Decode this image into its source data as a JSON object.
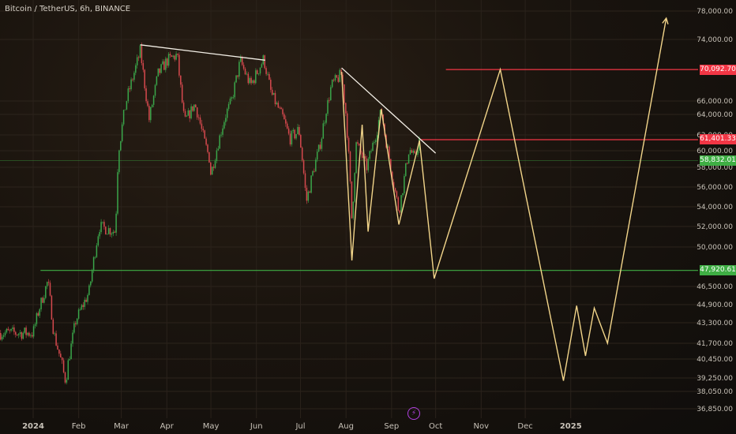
{
  "header": {
    "title": "Bitcoin / TetherUS, 6h, BINANCE"
  },
  "chart_data": {
    "type": "candlestick",
    "symbol": "Bitcoin / TetherUS",
    "interval": "6h",
    "exchange": "BINANCE",
    "y_axis_ticks": [
      "78,000.00",
      "74,000.00",
      "66,000.00",
      "64,000.00",
      "62,000.00",
      "60,000.00",
      "58,000.00",
      "56,000.00",
      "54,000.00",
      "52,000.00",
      "50,000.00",
      "46,500.00",
      "44,900.00",
      "43,300.00",
      "41,700.00",
      "40,450.00",
      "39,250.00",
      "38,050.00",
      "36,850.00"
    ],
    "x_axis_labels": [
      "2024",
      "Feb",
      "Mar",
      "Apr",
      "May",
      "Jun",
      "Jul",
      "Aug",
      "Sep",
      "Oct",
      "Nov",
      "Dec",
      "2025"
    ],
    "ylim": [
      36250,
      78800
    ],
    "scale": "log-like",
    "grid": true,
    "price_levels": [
      {
        "label": "70,092.70",
        "value": 70092.7,
        "color": "#f23645"
      },
      {
        "label": "61,401.33",
        "value": 61401.33,
        "color": "#f23645"
      },
      {
        "label": "58,832.01",
        "value": 58832.01,
        "color": "#3fae44"
      },
      {
        "label": "47,920.61",
        "value": 47920.61,
        "color": "#3fae44"
      }
    ],
    "price_series_approx": [
      [
        "2024-01-01",
        42500
      ],
      [
        "2024-01-05",
        44500
      ],
      [
        "2024-01-11",
        47000
      ],
      [
        "2024-01-15",
        42500
      ],
      [
        "2024-01-23",
        39000
      ],
      [
        "2024-01-30",
        43500
      ],
      [
        "2024-02-08",
        46000
      ],
      [
        "2024-02-12",
        49500
      ],
      [
        "2024-02-15",
        52000
      ],
      [
        "2024-02-26",
        51500
      ],
      [
        "2024-02-28",
        60000
      ],
      [
        "2024-03-05",
        66500
      ],
      [
        "2024-03-08",
        68500
      ],
      [
        "2024-03-14",
        72500
      ],
      [
        "2024-03-20",
        63500
      ],
      [
        "2024-03-26",
        69500
      ],
      [
        "2024-04-01",
        71200
      ],
      [
        "2024-04-08",
        72000
      ],
      [
        "2024-04-13",
        63000
      ],
      [
        "2024-04-20",
        65500
      ],
      [
        "2024-04-30",
        59000
      ],
      [
        "2024-05-01",
        57200
      ],
      [
        "2024-05-08",
        62500
      ],
      [
        "2024-05-15",
        66000
      ],
      [
        "2024-05-21",
        71200
      ],
      [
        "2024-05-28",
        68000
      ],
      [
        "2024-06-06",
        71500
      ],
      [
        "2024-06-11",
        67000
      ],
      [
        "2024-06-24",
        61500
      ],
      [
        "2024-06-30",
        62500
      ],
      [
        "2024-07-05",
        54500
      ],
      [
        "2024-07-14",
        60500
      ],
      [
        "2024-07-22",
        68000
      ],
      [
        "2024-07-29",
        69500
      ],
      [
        "2024-08-02",
        62000
      ],
      [
        "2024-08-05",
        52500
      ],
      [
        "2024-08-08",
        61000
      ],
      [
        "2024-08-15",
        58000
      ],
      [
        "2024-08-25",
        64500
      ],
      [
        "2024-09-01",
        57500
      ],
      [
        "2024-09-06",
        53500
      ],
      [
        "2024-09-10",
        57200
      ],
      [
        "2024-09-13",
        60300
      ],
      [
        "2024-09-17",
        59000
      ],
      [
        "2024-09-20",
        61500
      ]
    ],
    "trend_lines": [
      {
        "from": [
          "2024-03-14",
          73300
        ],
        "to": [
          "2024-06-07",
          71300
        ]
      },
      {
        "from": [
          "2024-07-29",
          70300
        ],
        "to": [
          "2024-10-01",
          59700
        ]
      }
    ],
    "projection_path": [
      [
        "2024-07-29",
        69800
      ],
      [
        "2024-08-05",
        48800
      ],
      [
        "2024-08-12",
        63000
      ],
      [
        "2024-08-16",
        51500
      ],
      [
        "2024-08-25",
        64800
      ],
      [
        "2024-09-06",
        52200
      ],
      [
        "2024-09-20",
        61300
      ],
      [
        "2024-09-30",
        47200
      ],
      [
        "2024-11-14",
        70100
      ],
      [
        "2024-12-27",
        39000
      ],
      [
        "2025-01-05",
        44800
      ],
      [
        "2025-01-11",
        40700
      ],
      [
        "2025-01-17",
        44600
      ],
      [
        "2025-01-26",
        41700
      ],
      [
        "2025-03-07",
        77000
      ]
    ]
  }
}
